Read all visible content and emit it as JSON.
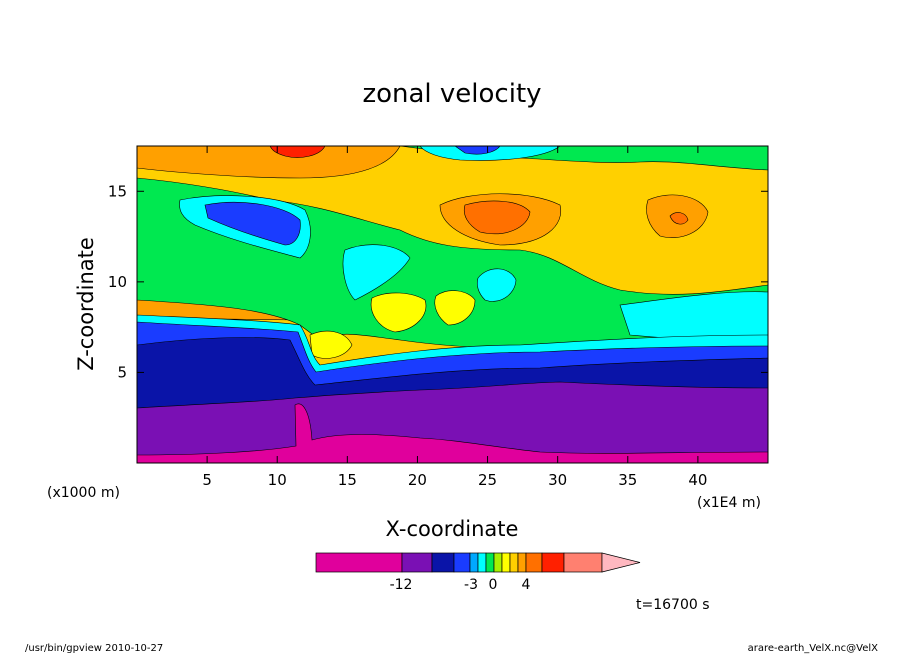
{
  "chart_data": {
    "type": "heatmap",
    "title": "zonal velocity",
    "xlabel": "X-coordinate",
    "ylabel": "Z-coordinate",
    "x_unit_left": "(x1000 m)",
    "x_unit_right": "(x1E4 m)",
    "xlim": [
      0,
      45
    ],
    "ylim": [
      0,
      17.5
    ],
    "xticks": [
      5,
      10,
      15,
      20,
      25,
      30,
      35,
      40
    ],
    "yticks": [
      5,
      10,
      15
    ],
    "colorbar": {
      "labels": [
        "-12",
        "-3",
        "0",
        "4"
      ],
      "colors": [
        "#e0009c",
        "#7a10b4",
        "#0a14a8",
        "#1a3cff",
        "#00a8ff",
        "#00ffff",
        "#00e850",
        "#a8f000",
        "#ffff00",
        "#ffd000",
        "#ffa000",
        "#ff7000",
        "#ff2000",
        "#ff8070",
        "#ffb8c0"
      ]
    },
    "time_label": "t=16700 s"
  },
  "footer": {
    "left": "/usr/bin/gpview   2010-10-27",
    "right": "arare-earth_VelX.nc@VelX"
  }
}
